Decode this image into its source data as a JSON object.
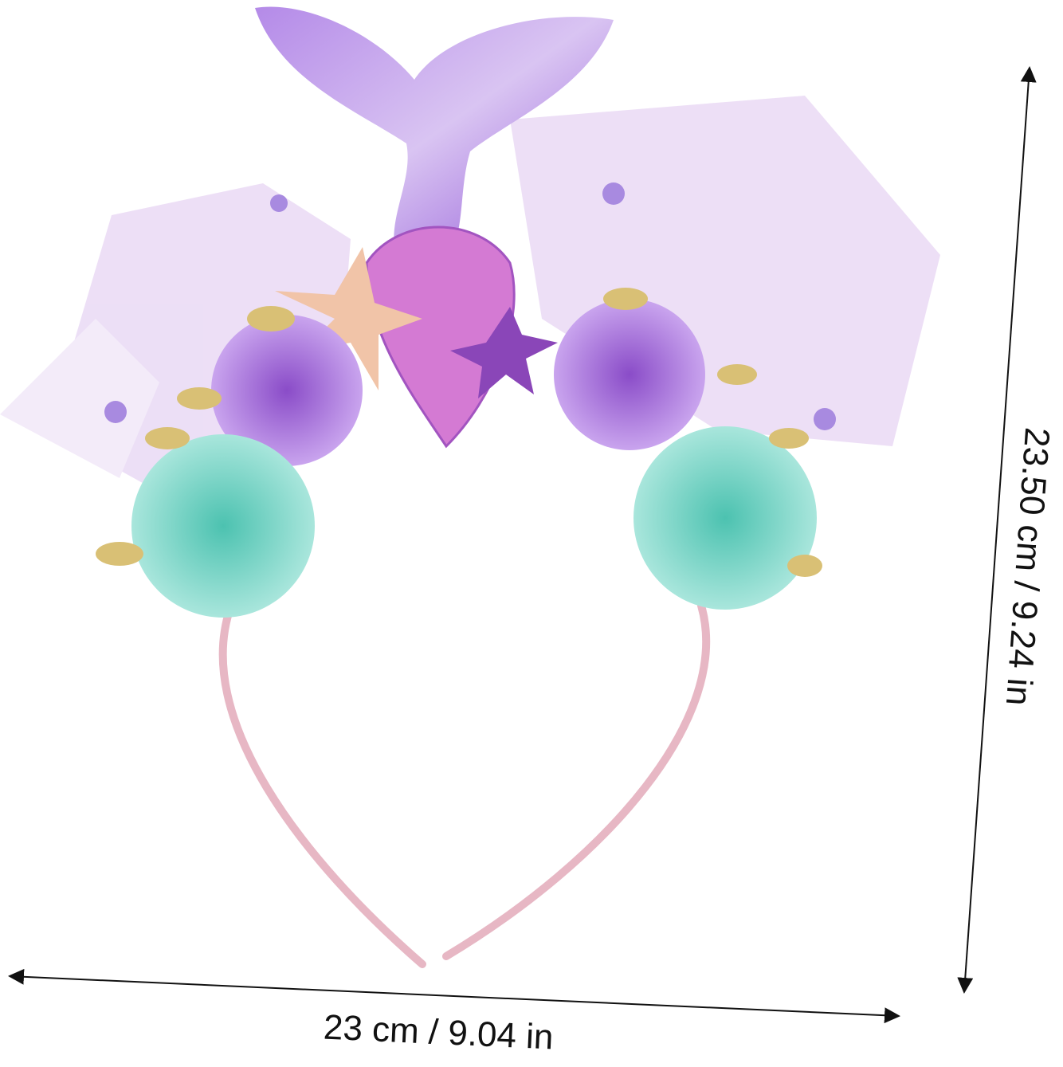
{
  "dimensions": {
    "width_label": "23 cm / 9.04 in",
    "height_label": "23.50 cm / 9.24 in"
  }
}
